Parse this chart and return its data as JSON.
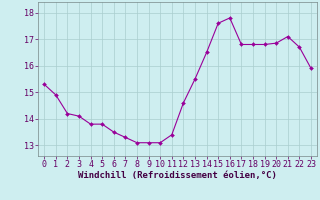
{
  "x": [
    0,
    1,
    2,
    3,
    4,
    5,
    6,
    7,
    8,
    9,
    10,
    11,
    12,
    13,
    14,
    15,
    16,
    17,
    18,
    19,
    20,
    21,
    22,
    23
  ],
  "y": [
    15.3,
    14.9,
    14.2,
    14.1,
    13.8,
    13.8,
    13.5,
    13.3,
    13.1,
    13.1,
    13.1,
    13.4,
    14.6,
    15.5,
    16.5,
    17.6,
    17.8,
    16.8,
    16.8,
    16.8,
    16.85,
    17.1,
    16.7,
    15.9
  ],
  "line_color": "#990099",
  "marker": "D",
  "marker_size": 2.0,
  "bg_color": "#ceeef0",
  "grid_color": "#aacece",
  "xlabel": "Windchill (Refroidissement éolien,°C)",
  "xticks": [
    0,
    1,
    2,
    3,
    4,
    5,
    6,
    7,
    8,
    9,
    10,
    11,
    12,
    13,
    14,
    15,
    16,
    17,
    18,
    19,
    20,
    21,
    22,
    23
  ],
  "yticks": [
    13,
    14,
    15,
    16,
    17,
    18
  ],
  "ylim": [
    12.6,
    18.4
  ],
  "xlim": [
    -0.5,
    23.5
  ],
  "xlabel_fontsize": 6.5,
  "tick_fontsize": 6.0,
  "tick_color": "#660066",
  "label_color": "#440044"
}
